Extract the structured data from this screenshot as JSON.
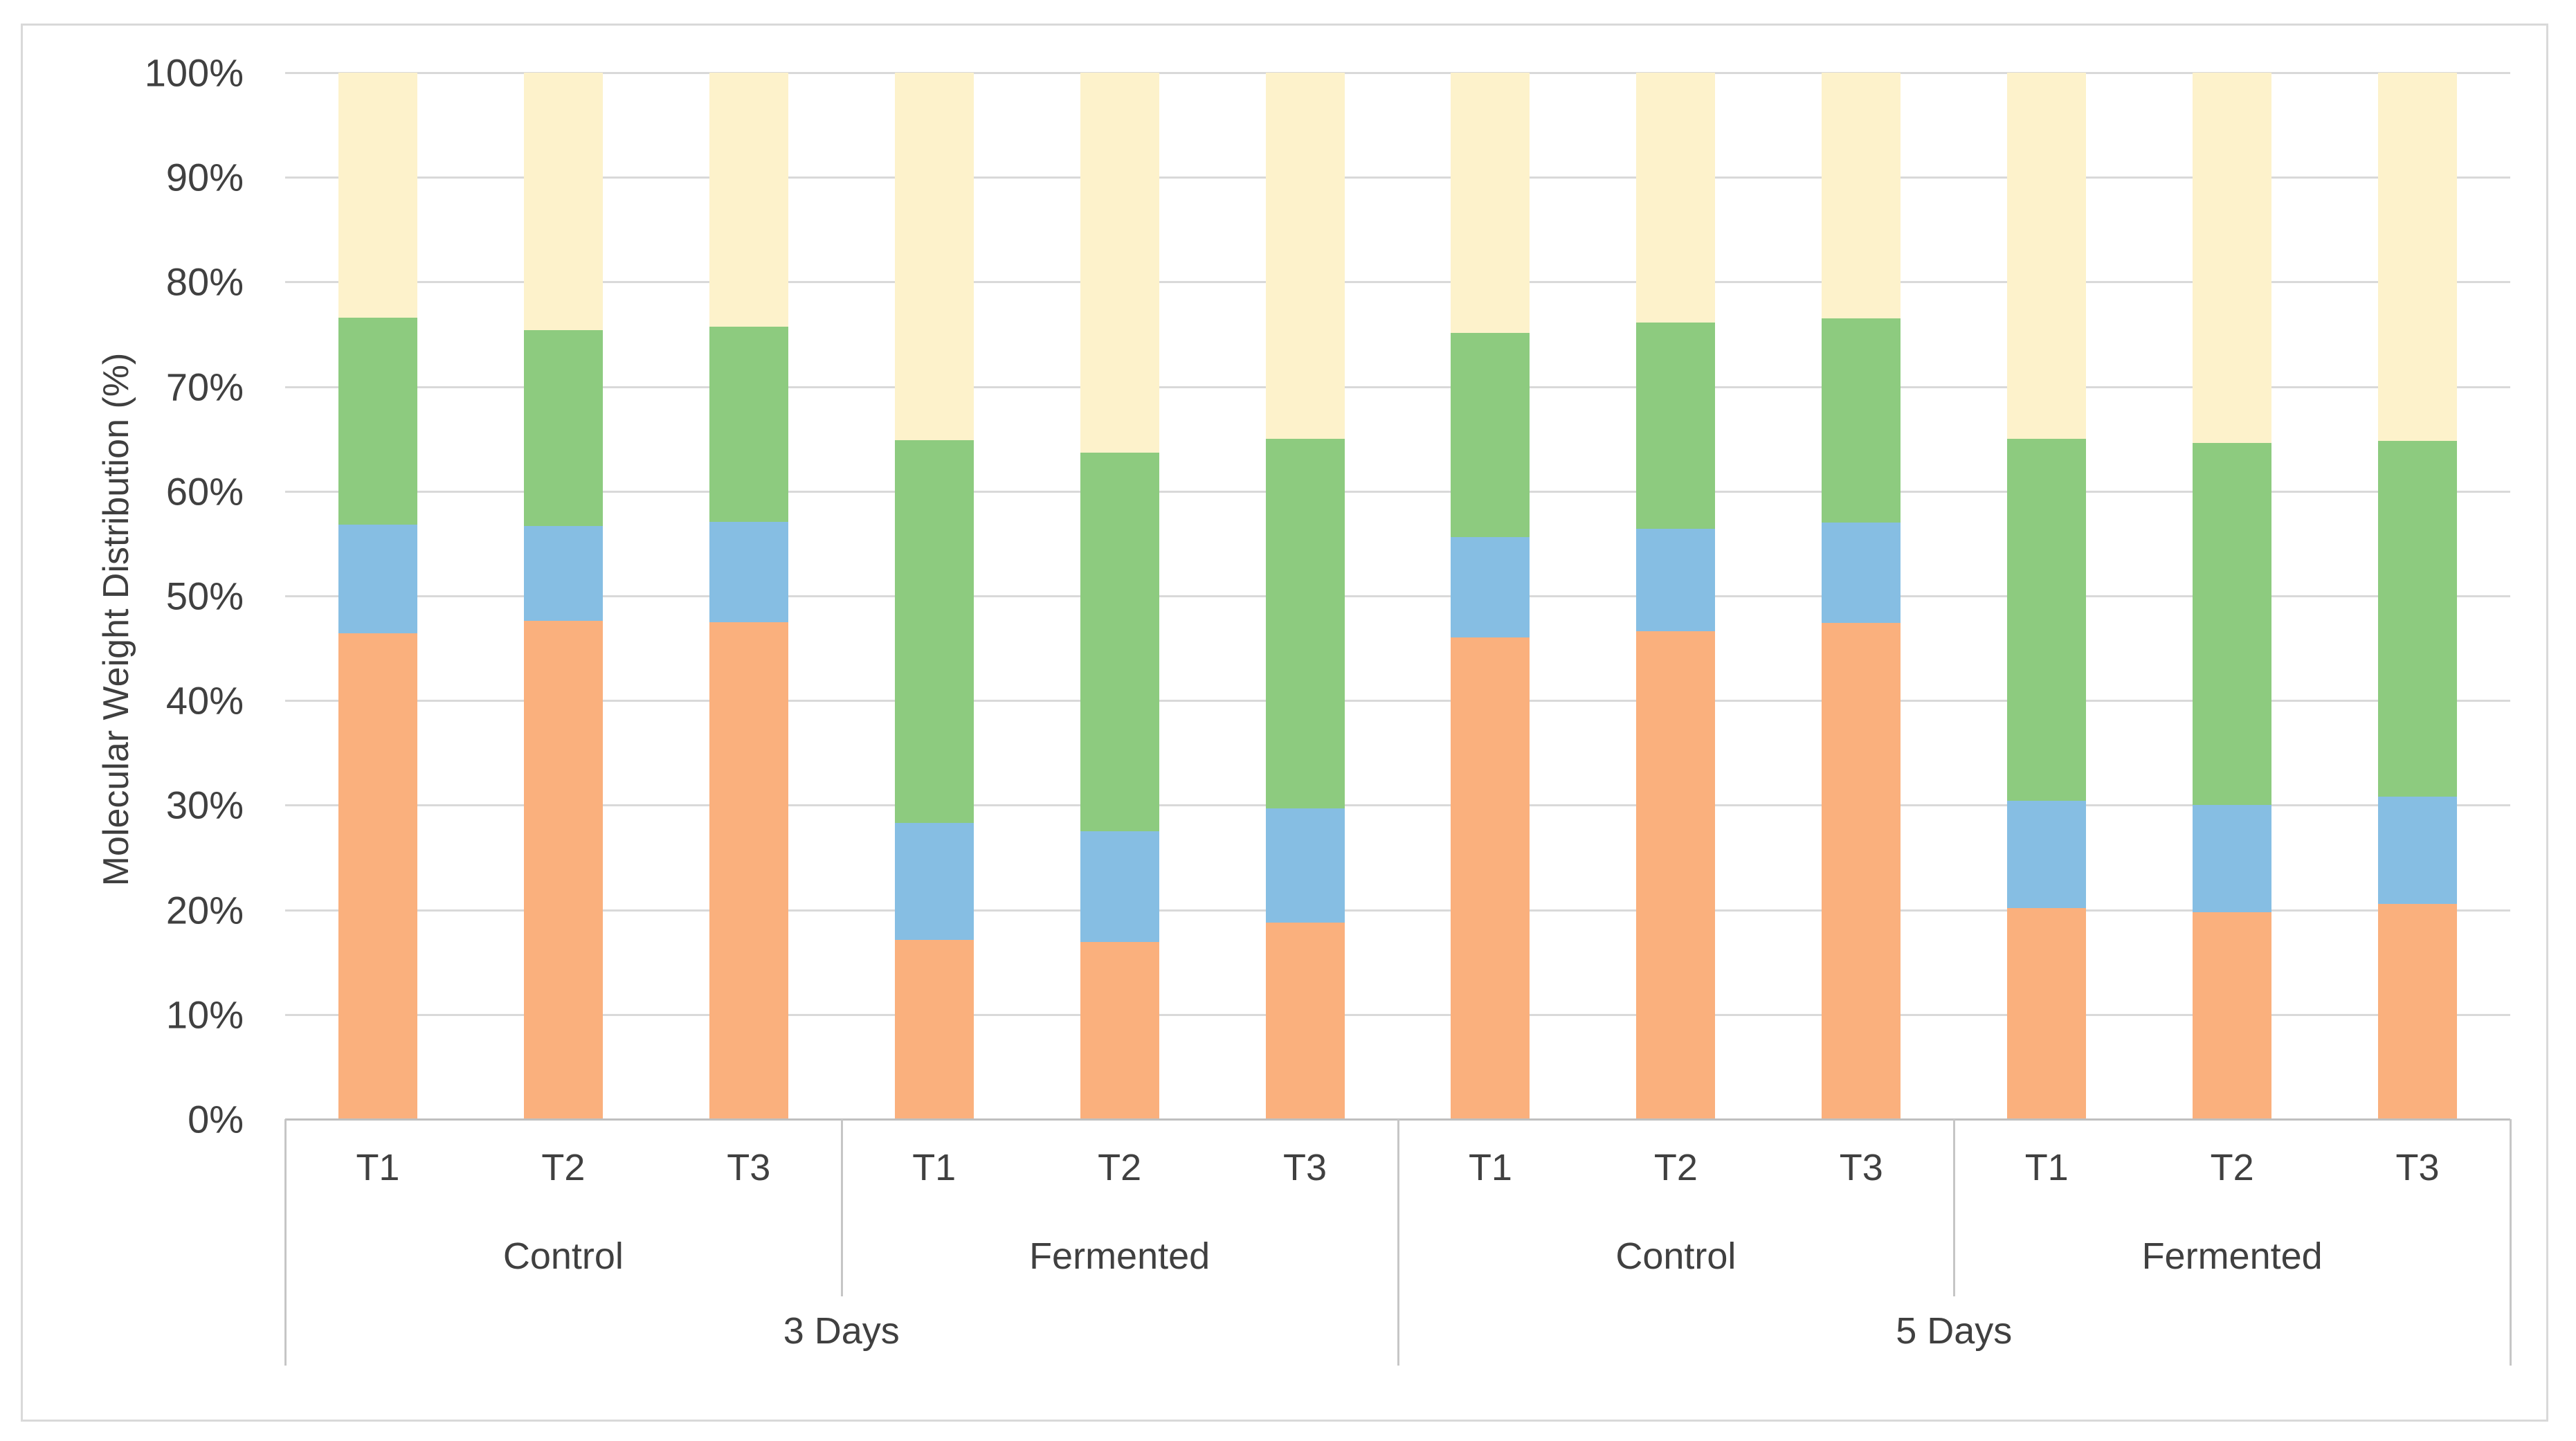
{
  "chart_data": {
    "type": "bar",
    "variant": "stacked-100-percent-column",
    "title": "",
    "xlabel": "",
    "ylabel": "Molecular Weight Distribution (%)",
    "ylim": [
      0,
      100
    ],
    "y_tick_step": 10,
    "y_ticks": [
      "0%",
      "10%",
      "20%",
      "30%",
      "40%",
      "50%",
      "60%",
      "70%",
      "80%",
      "90%",
      "100%"
    ],
    "grid": true,
    "legend": "none",
    "x_hierarchy": {
      "durations": [
        {
          "label": "3 Days",
          "treatments": [
            {
              "label": "Control",
              "times": [
                "T1",
                "T2",
                "T3"
              ]
            },
            {
              "label": "Fermented",
              "times": [
                "T1",
                "T2",
                "T3"
              ]
            }
          ]
        },
        {
          "label": "5 Days",
          "treatments": [
            {
              "label": "Control",
              "times": [
                "T1",
                "T2",
                "T3"
              ]
            },
            {
              "label": "Fermented",
              "times": [
                "T1",
                "T2",
                "T3"
              ]
            }
          ]
        }
      ]
    },
    "categories": [
      "3 Days / Control / T1",
      "3 Days / Control / T2",
      "3 Days / Control / T3",
      "3 Days / Fermented / T1",
      "3 Days / Fermented / T2",
      "3 Days / Fermented / T3",
      "5 Days / Control / T1",
      "5 Days / Control / T2",
      "5 Days / Control / T3",
      "5 Days / Fermented / T1",
      "5 Days / Fermented / T2",
      "5 Days / Fermented / T3"
    ],
    "series": [
      {
        "name": "segment-1-orange-bottom",
        "color": "#FAB07D",
        "values": [
          46.4,
          47.6,
          47.5,
          17.1,
          16.9,
          18.8,
          46.0,
          46.6,
          47.4,
          20.2,
          19.8,
          20.6
        ]
      },
      {
        "name": "segment-2-blue",
        "color": "#86BEE3",
        "values": [
          10.4,
          9.1,
          9.6,
          11.2,
          10.6,
          10.9,
          9.6,
          9.8,
          9.6,
          10.2,
          10.2,
          10.2
        ]
      },
      {
        "name": "segment-3-green",
        "color": "#8DCB7F",
        "values": [
          19.8,
          18.7,
          18.6,
          36.6,
          36.2,
          35.3,
          19.5,
          19.7,
          19.5,
          34.6,
          34.6,
          34.0
        ]
      },
      {
        "name": "segment-4-cream-top",
        "color": "#FDF2CB",
        "values": [
          23.4,
          24.6,
          24.3,
          35.1,
          36.3,
          35.0,
          24.9,
          23.9,
          23.5,
          35.0,
          35.4,
          35.2
        ]
      }
    ],
    "colors": {
      "gridline": "#D9D9D9",
      "axis_line": "#BFBFBF",
      "separator": "#C6C6C6",
      "text": "#404040",
      "background": "#FFFFFF",
      "border": "#D9D9D9"
    }
  }
}
